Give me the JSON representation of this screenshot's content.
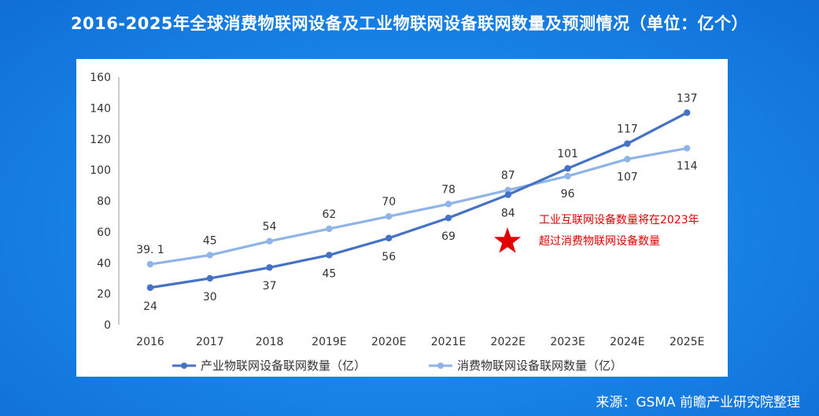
{
  "title": "2016-2025年全球消费物联网设备及工业物联网设备联网数量及预测情况（单位：亿个）",
  "source": "来源：GSMA 前瞻产业研究院整理",
  "chart_data": {
    "type": "line",
    "categories": [
      "2016",
      "2017",
      "2018",
      "2019E",
      "2020E",
      "2021E",
      "2022E",
      "2023E",
      "2024E",
      "2025E"
    ],
    "ylim": [
      0,
      160
    ],
    "yticks": [
      0,
      20,
      40,
      60,
      80,
      100,
      120,
      140,
      160
    ],
    "grid": false,
    "legend_position": "bottom",
    "series": [
      {
        "name": "产业物联网设备联网数量（亿）",
        "color": "#4472c4",
        "values": [
          24,
          30,
          37,
          45,
          56,
          69,
          84,
          101,
          117,
          137
        ],
        "labels": [
          "24",
          "30",
          "37",
          "45",
          "56",
          "69",
          "84",
          "101",
          "117",
          "137"
        ]
      },
      {
        "name": "消费物联网设备联网数量（亿）",
        "color": "#8fb4e8",
        "values": [
          39.1,
          45,
          54,
          62,
          70,
          78,
          87,
          96,
          107,
          114
        ],
        "labels": [
          "39. 1",
          "45",
          "54",
          "62",
          "70",
          "78",
          "87",
          "96",
          "107",
          "114"
        ]
      }
    ],
    "annotation": {
      "lines": [
        "工业互联网设备数量将在2023年",
        "超过消费物联网设备数量"
      ],
      "marker": "star-icon",
      "color": "#e00000"
    }
  }
}
